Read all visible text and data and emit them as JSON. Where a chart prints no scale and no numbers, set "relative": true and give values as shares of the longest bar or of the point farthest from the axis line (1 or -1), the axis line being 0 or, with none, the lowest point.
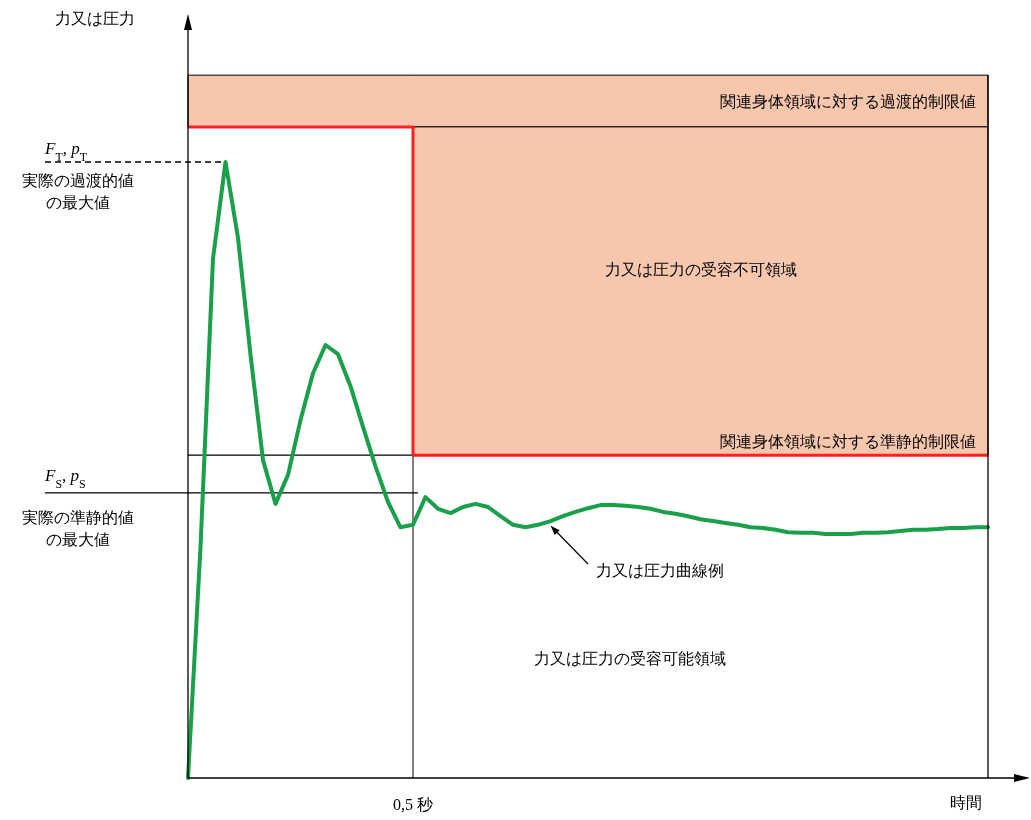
{
  "chart_data": {
    "type": "line",
    "relative": true,
    "xlabel": "時間",
    "categories": [
      null,
      null,
      null,
      null,
      null,
      null,
      null,
      null,
      null,
      null,
      null,
      null,
      null,
      null,
      null,
      null,
      null,
      null,
      null,
      null,
      null,
      null,
      null,
      null,
      null,
      null,
      null,
      null,
      null,
      null,
      null,
      null,
      null,
      null,
      null,
      null,
      null,
      null,
      null,
      null,
      null,
      null,
      null,
      null,
      null,
      null,
      null,
      null,
      null,
      null,
      null,
      null,
      null,
      null,
      null,
      null,
      null,
      null,
      null,
      null,
      null,
      null,
      null,
      null,
      null
    ],
    "series": [
      {
        "color": "#1aa04a",
        "values": [
          0,
          0.375,
          0.843,
          1.0,
          0.877,
          0.687,
          0.516,
          0.445,
          0.492,
          0.581,
          0.657,
          0.703,
          0.688,
          0.636,
          0.57,
          0.506,
          0.448,
          0.407,
          0.411,
          0.456,
          0.437,
          0.43,
          0.44,
          0.445,
          0.44,
          0.425,
          0.411,
          0.407,
          0.411,
          0.417,
          0.425,
          0.432,
          0.438,
          0.443,
          0.443,
          0.442,
          0.44,
          0.437,
          0.432,
          0.429,
          0.425,
          0.42,
          0.417,
          0.414,
          0.411,
          0.407,
          0.406,
          0.403,
          0.399,
          0.398,
          0.398,
          0.396,
          0.396,
          0.396,
          0.398,
          0.398,
          0.399,
          0.401,
          0.403,
          0.403,
          0.404,
          0.406,
          0.406,
          0.407,
          0.407
        ]
      }
    ],
    "ref_lines": [
      {
        "axis": "y",
        "value": 1.0,
        "label": "*F*$_{T}$, *p*$_{T}$",
        "line_style": "dashed",
        "color": "#000000"
      },
      {
        "axis": "y",
        "value": 0.463,
        "label": "*F*$_{S}$, *p*$_{S}$",
        "color": "#000000"
      },
      {
        "axis": "y",
        "value": 0.524,
        "label": "関連身体領域に対する準静的制限値",
        "color": "#000000"
      },
      {
        "axis": "y",
        "value": 1.057,
        "color": "#ff2020"
      }
    ],
    "bands": [
      {
        "axis": "y",
        "from": 1.057,
        "to": 1.141,
        "label": "関連身体領域に対する過渡的制限値",
        "color": "#f6c6ad"
      },
      {
        "axis": "y",
        "from": 0.524,
        "to": 1.057,
        "label": "力又は圧力の受容不可領域",
        "color": "#f6c6ad"
      }
    ],
    "annotations": [
      "実際の過渡的値の最大値",
      "実際の準静的値の最大値",
      "力又は圧力曲線例",
      "力又は圧力の受容可能領域",
      "0,5 秒",
      "力又は圧力"
    ]
  }
}
